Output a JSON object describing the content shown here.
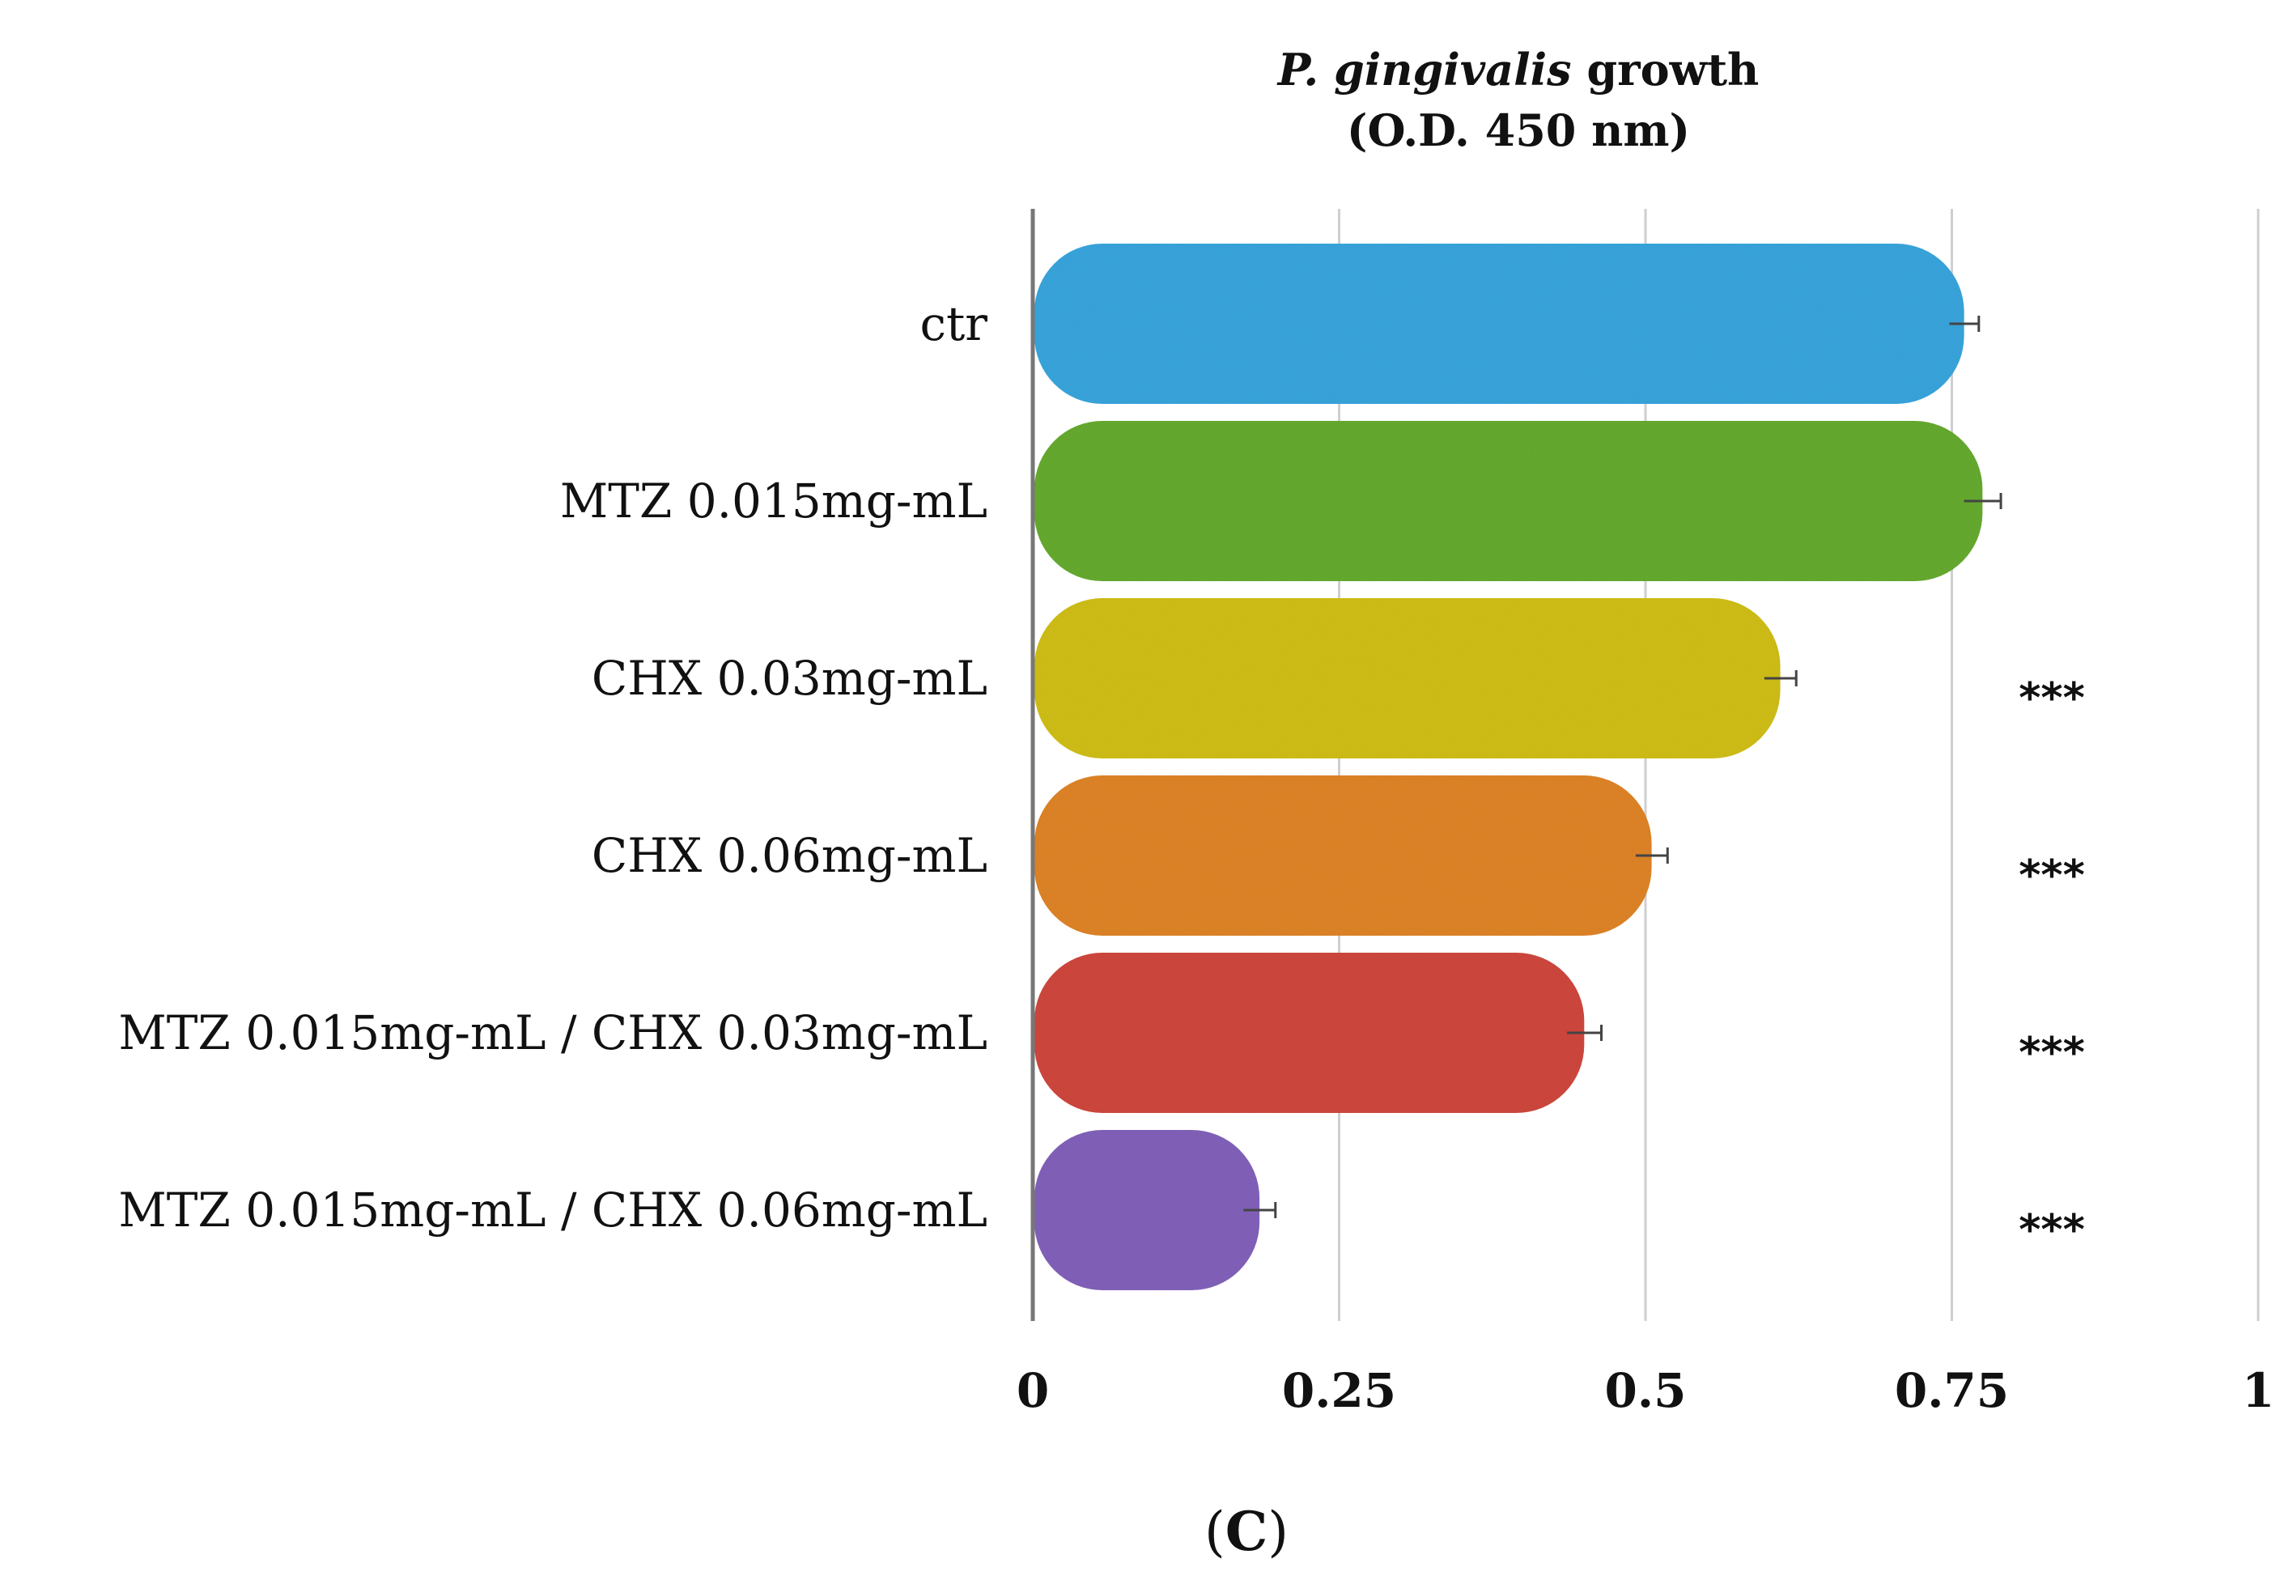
{
  "chart_data": {
    "type": "bar",
    "orientation": "horizontal",
    "title": {
      "italic": "P. gingivalis",
      "rest": " growth",
      "line2": "(O.D. 450 nm)"
    },
    "categories": [
      "ctr",
      "MTZ 0.015mg-mL",
      "CHX 0.03mg-mL",
      "CHX 0.06mg-mL",
      "MTZ 0.015mg-mL / CHX 0.03mg-mL",
      "MTZ 0.015mg-mL / CHX 0.06mg-mL"
    ],
    "values": [
      0.76,
      0.775,
      0.61,
      0.505,
      0.45,
      0.185
    ],
    "errors": [
      0.012,
      0.015,
      0.013,
      0.013,
      0.014,
      0.013
    ],
    "significance": [
      "",
      "",
      "***",
      "***",
      "***",
      "***"
    ],
    "colors": [
      "#3aa8e0",
      "#68ad33",
      "#d3c11f",
      "#e2862b",
      "#d24a40",
      "#8463bd"
    ],
    "xlim": [
      0,
      1
    ],
    "xticks": [
      0,
      0.25,
      0.5,
      0.75,
      1
    ],
    "xtick_labels": [
      "0",
      "0.25",
      "0.5",
      "0.75",
      "1"
    ],
    "grid": true,
    "xlabel": "",
    "ylabel": ""
  },
  "panel": {
    "open": "(",
    "letter": "C",
    "close": ")"
  }
}
